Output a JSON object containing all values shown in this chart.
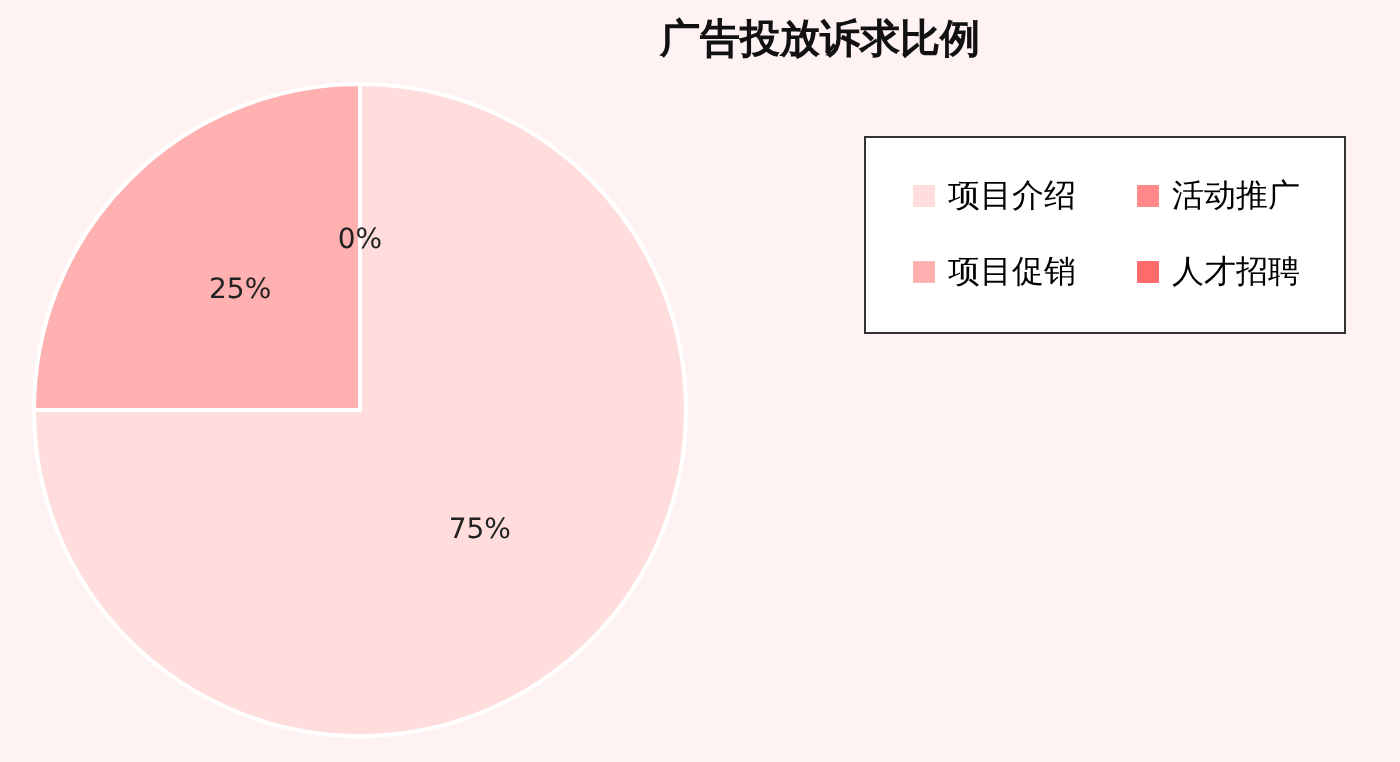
{
  "chart_data": {
    "type": "pie",
    "title": "广告投放诉求比例",
    "categories": [
      "项目介绍",
      "项目促销",
      "活动推广",
      "人才招聘"
    ],
    "values": [
      75,
      25,
      0,
      0
    ],
    "colors": [
      "#ffdddd",
      "#ffb0b0",
      "#ff8888",
      "#ff6a6a"
    ],
    "value_labels": [
      "75%",
      "25%",
      "0%",
      null
    ],
    "legend": "right"
  }
}
